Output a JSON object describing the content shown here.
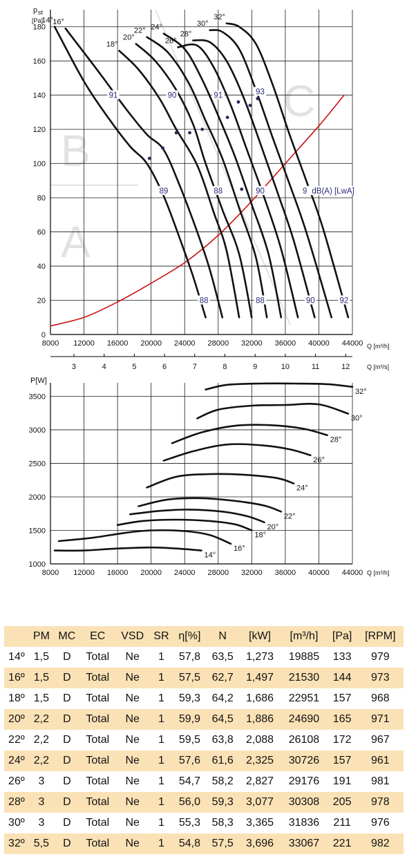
{
  "chart_data": [
    {
      "type": "line",
      "ylabel_main": "p",
      "ylabel_sub": "st",
      "ylabel_unit": "[Pa]",
      "xlabel": "Q [m³/h]",
      "xlabel2": "Q [m³/s]",
      "xlim": [
        8000,
        44000
      ],
      "ylim": [
        0,
        190
      ],
      "xticks": [
        "8000",
        "12000",
        "16000",
        "20000",
        "24000",
        "28000",
        "32000",
        "36000",
        "40000",
        "44000"
      ],
      "xticks2": [
        "3",
        "4",
        "5",
        "6",
        "7",
        "8",
        "9",
        "10",
        "11",
        "12"
      ],
      "yticks": [
        "0",
        "20",
        "40",
        "60",
        "80",
        "100",
        "120",
        "140",
        "160",
        "180"
      ],
      "grid": true,
      "zones": [
        "A",
        "B",
        "C"
      ],
      "series": [
        {
          "name": "14°",
          "points": [
            [
              8500,
              180
            ],
            [
              12000,
              148
            ],
            [
              15000,
              126
            ],
            [
              17500,
              110
            ],
            [
              19500,
              100
            ],
            [
              21500,
              81
            ],
            [
              23500,
              55
            ],
            [
              25000,
              34
            ],
            [
              26500,
              10
            ]
          ]
        },
        {
          "name": "16°",
          "points": [
            [
              9800,
              179
            ],
            [
              14000,
              152
            ],
            [
              17000,
              132
            ],
            [
              19500,
              117
            ],
            [
              21500,
              108
            ],
            [
              23500,
              86
            ],
            [
              25500,
              60
            ],
            [
              27000,
              38
            ],
            [
              28500,
              10
            ]
          ]
        },
        {
          "name": "18°",
          "points": [
            [
              16200,
              166
            ],
            [
              18500,
              155
            ],
            [
              21000,
              138
            ],
            [
              23000,
              120
            ],
            [
              25500,
              99
            ],
            [
              27500,
              71
            ],
            [
              29000,
              49
            ],
            [
              30500,
              10
            ]
          ]
        },
        {
          "name": "20°",
          "points": [
            [
              18200,
              170
            ],
            [
              20500,
              160
            ],
            [
              23000,
              143
            ],
            [
              25000,
              123
            ],
            [
              26500,
              100
            ],
            [
              28500,
              73
            ],
            [
              30500,
              47
            ],
            [
              32000,
              10
            ]
          ]
        },
        {
          "name": "22°",
          "points": [
            [
              19500,
              174
            ],
            [
              22000,
              165
            ],
            [
              24500,
              147
            ],
            [
              26500,
              125
            ],
            [
              28500,
              103
            ],
            [
              30500,
              74
            ],
            [
              32500,
              45
            ],
            [
              33800,
              10
            ]
          ]
        },
        {
          "name": "24°",
          "points": [
            [
              21500,
              176
            ],
            [
              24000,
              167
            ],
            [
              26000,
              150
            ],
            [
              28000,
              128
            ],
            [
              30000,
              104
            ],
            [
              32000,
              76
            ],
            [
              34000,
              47
            ],
            [
              35500,
              10
            ]
          ]
        },
        {
          "name": "26°",
          "points": [
            [
              23200,
              168
            ],
            [
              25500,
              169
            ],
            [
              27500,
              156
            ],
            [
              29500,
              134
            ],
            [
              31500,
              107
            ],
            [
              33500,
              80
            ],
            [
              35500,
              50
            ],
            [
              37500,
              10
            ]
          ]
        },
        {
          "name": "28°",
          "points": [
            [
              25000,
              172
            ],
            [
              27000,
              171
            ],
            [
              29000,
              160
            ],
            [
              31000,
              139
            ],
            [
              33000,
              112
            ],
            [
              35000,
              84
            ],
            [
              37000,
              55
            ],
            [
              39500,
              10
            ]
          ]
        },
        {
          "name": "30°",
          "points": [
            [
              27000,
              178
            ],
            [
              28500,
              177
            ],
            [
              30500,
              167
            ],
            [
              32500,
              143
            ],
            [
              34500,
              115
            ],
            [
              36500,
              88
            ],
            [
              38500,
              60
            ],
            [
              41500,
              10
            ]
          ]
        },
        {
          "name": "32°",
          "points": [
            [
              29000,
              182
            ],
            [
              30500,
              180
            ],
            [
              32500,
              170
            ],
            [
              34500,
              146
            ],
            [
              36500,
              117
            ],
            [
              38500,
              90
            ],
            [
              40500,
              62
            ],
            [
              43500,
              10
            ]
          ]
        }
      ],
      "system_curve": {
        "name": "system",
        "points": [
          [
            8000,
            5
          ],
          [
            12000,
            10
          ],
          [
            16000,
            19
          ],
          [
            20000,
            30
          ],
          [
            24000,
            42
          ],
          [
            28000,
            58
          ],
          [
            32000,
            78
          ],
          [
            36000,
            100
          ],
          [
            40000,
            122
          ],
          [
            43000,
            140
          ]
        ]
      },
      "efficiency_labels": [
        {
          "text": "91",
          "x": 15500,
          "y": 140
        },
        {
          "text": "90",
          "x": 22500,
          "y": 140
        },
        {
          "text": "91",
          "x": 28000,
          "y": 140
        },
        {
          "text": "93",
          "x": 33000,
          "y": 142
        },
        {
          "text": "89",
          "x": 21500,
          "y": 84
        },
        {
          "text": "88",
          "x": 28000,
          "y": 84
        },
        {
          "text": "90",
          "x": 33000,
          "y": 84
        },
        {
          "text": "92",
          "x": 38600,
          "y": 84
        },
        {
          "text": "dB(A) [LwA]",
          "x": 41700,
          "y": 84
        },
        {
          "text": "88",
          "x": 26300,
          "y": 20
        },
        {
          "text": "88",
          "x": 33000,
          "y": 20
        },
        {
          "text": "90",
          "x": 39000,
          "y": 20
        },
        {
          "text": "92",
          "x": 43000,
          "y": 20
        }
      ],
      "points": [
        [
          19800,
          103
        ],
        [
          21400,
          109
        ],
        [
          23000,
          118
        ],
        [
          24600,
          118
        ],
        [
          26100,
          120
        ],
        [
          29100,
          127
        ],
        [
          30400,
          136
        ],
        [
          31800,
          134
        ],
        [
          32700,
          138
        ],
        [
          30800,
          85
        ]
      ]
    },
    {
      "type": "line",
      "ylabel": "P[W]",
      "xlabel": "Q [m³/h]",
      "xlim": [
        8000,
        44000
      ],
      "ylim": [
        1000,
        3700
      ],
      "xticks": [
        "8000",
        "12000",
        "16000",
        "20000",
        "24000",
        "28000",
        "32000",
        "36000",
        "40000",
        "44000"
      ],
      "yticks": [
        "1000",
        "1500",
        "2000",
        "2500",
        "3000",
        "3500"
      ],
      "grid": true,
      "series": [
        {
          "name": "14°",
          "points": [
            [
              8500,
              1200
            ],
            [
              12000,
              1200
            ],
            [
              16000,
              1230
            ],
            [
              20000,
              1245
            ],
            [
              23000,
              1230
            ],
            [
              26000,
              1200
            ]
          ]
        },
        {
          "name": "16°",
          "points": [
            [
              9000,
              1340
            ],
            [
              13000,
              1390
            ],
            [
              17000,
              1465
            ],
            [
              20000,
              1500
            ],
            [
              24000,
              1490
            ],
            [
              27000,
              1430
            ],
            [
              29500,
              1300
            ]
          ]
        },
        {
          "name": "18°",
          "points": [
            [
              16000,
              1580
            ],
            [
              19000,
              1640
            ],
            [
              23000,
              1660
            ],
            [
              27000,
              1640
            ],
            [
              30000,
              1590
            ],
            [
              32000,
              1500
            ]
          ]
        },
        {
          "name": "20°",
          "points": [
            [
              17500,
              1740
            ],
            [
              21000,
              1790
            ],
            [
              24500,
              1810
            ],
            [
              28500,
              1780
            ],
            [
              31500,
              1710
            ],
            [
              33500,
              1620
            ]
          ]
        },
        {
          "name": "22°",
          "points": [
            [
              18500,
              1860
            ],
            [
              22000,
              1960
            ],
            [
              26000,
              1980
            ],
            [
              30000,
              1940
            ],
            [
              33500,
              1870
            ],
            [
              35500,
              1780
            ]
          ]
        },
        {
          "name": "24°",
          "points": [
            [
              19500,
              2140
            ],
            [
              23000,
              2300
            ],
            [
              27000,
              2340
            ],
            [
              31000,
              2330
            ],
            [
              35000,
              2280
            ],
            [
              37000,
              2200
            ]
          ]
        },
        {
          "name": "26°",
          "points": [
            [
              21500,
              2540
            ],
            [
              25000,
              2680
            ],
            [
              29000,
              2780
            ],
            [
              33000,
              2770
            ],
            [
              36500,
              2710
            ],
            [
              39000,
              2620
            ]
          ]
        },
        {
          "name": "28°",
          "points": [
            [
              22500,
              2800
            ],
            [
              26000,
              2960
            ],
            [
              30000,
              3060
            ],
            [
              34000,
              3070
            ],
            [
              38000,
              3020
            ],
            [
              41000,
              2920
            ]
          ]
        },
        {
          "name": "30°",
          "points": [
            [
              25500,
              3170
            ],
            [
              28000,
              3300
            ],
            [
              32000,
              3360
            ],
            [
              36000,
              3370
            ],
            [
              40000,
              3380
            ],
            [
              43500,
              3240
            ]
          ]
        },
        {
          "name": "32°",
          "points": [
            [
              26500,
              3600
            ],
            [
              29000,
              3670
            ],
            [
              33000,
              3690
            ],
            [
              37000,
              3690
            ],
            [
              41000,
              3680
            ],
            [
              44000,
              3640
            ]
          ]
        }
      ]
    }
  ],
  "table": {
    "headers": [
      "",
      "PM",
      "MC",
      "EC",
      "VSD",
      "SR",
      "η[%]",
      "N",
      "[kW]",
      "[m³/h]",
      "[Pa]",
      "[RPM]"
    ],
    "rows": [
      [
        "14º",
        "1,5",
        "D",
        "Total",
        "Ne",
        "1",
        "57,8",
        "63,5",
        "1,273",
        "19885",
        "133",
        "979"
      ],
      [
        "16º",
        "1,5",
        "D",
        "Total",
        "Ne",
        "1",
        "57,5",
        "62,7",
        "1,497",
        "21530",
        "144",
        "973"
      ],
      [
        "18º",
        "1,5",
        "D",
        "Total",
        "Ne",
        "1",
        "59,3",
        "64,2",
        "1,686",
        "22951",
        "157",
        "968"
      ],
      [
        "20º",
        "2,2",
        "D",
        "Total",
        "Ne",
        "1",
        "59,9",
        "64,5",
        "1,886",
        "24690",
        "165",
        "971"
      ],
      [
        "22º",
        "2,2",
        "D",
        "Total",
        "Ne",
        "1",
        "59,5",
        "63,8",
        "2,088",
        "26108",
        "172",
        "967"
      ],
      [
        "24º",
        "2,2",
        "D",
        "Total",
        "Ne",
        "1",
        "57,6",
        "61,6",
        "2,325",
        "30726",
        "157",
        "961"
      ],
      [
        "26º",
        "3",
        "D",
        "Total",
        "Ne",
        "1",
        "54,7",
        "58,2",
        "2,827",
        "29176",
        "191",
        "981"
      ],
      [
        "28º",
        "3",
        "D",
        "Total",
        "Ne",
        "1",
        "56,0",
        "59,3",
        "3,077",
        "30308",
        "205",
        "978"
      ],
      [
        "30º",
        "3",
        "D",
        "Total",
        "Ne",
        "1",
        "55,3",
        "58,3",
        "3,365",
        "31836",
        "211",
        "976"
      ],
      [
        "32º",
        "5,5",
        "D",
        "Total",
        "Ne",
        "1",
        "54,8",
        "57,5",
        "3,696",
        "33067",
        "221",
        "982"
      ]
    ]
  },
  "colors": {
    "curve": "#111111",
    "system": "#cc1111",
    "table_alt": "#fbe2b6",
    "grid": "#1a1a1a",
    "zone_text": "#e2e2e2"
  }
}
